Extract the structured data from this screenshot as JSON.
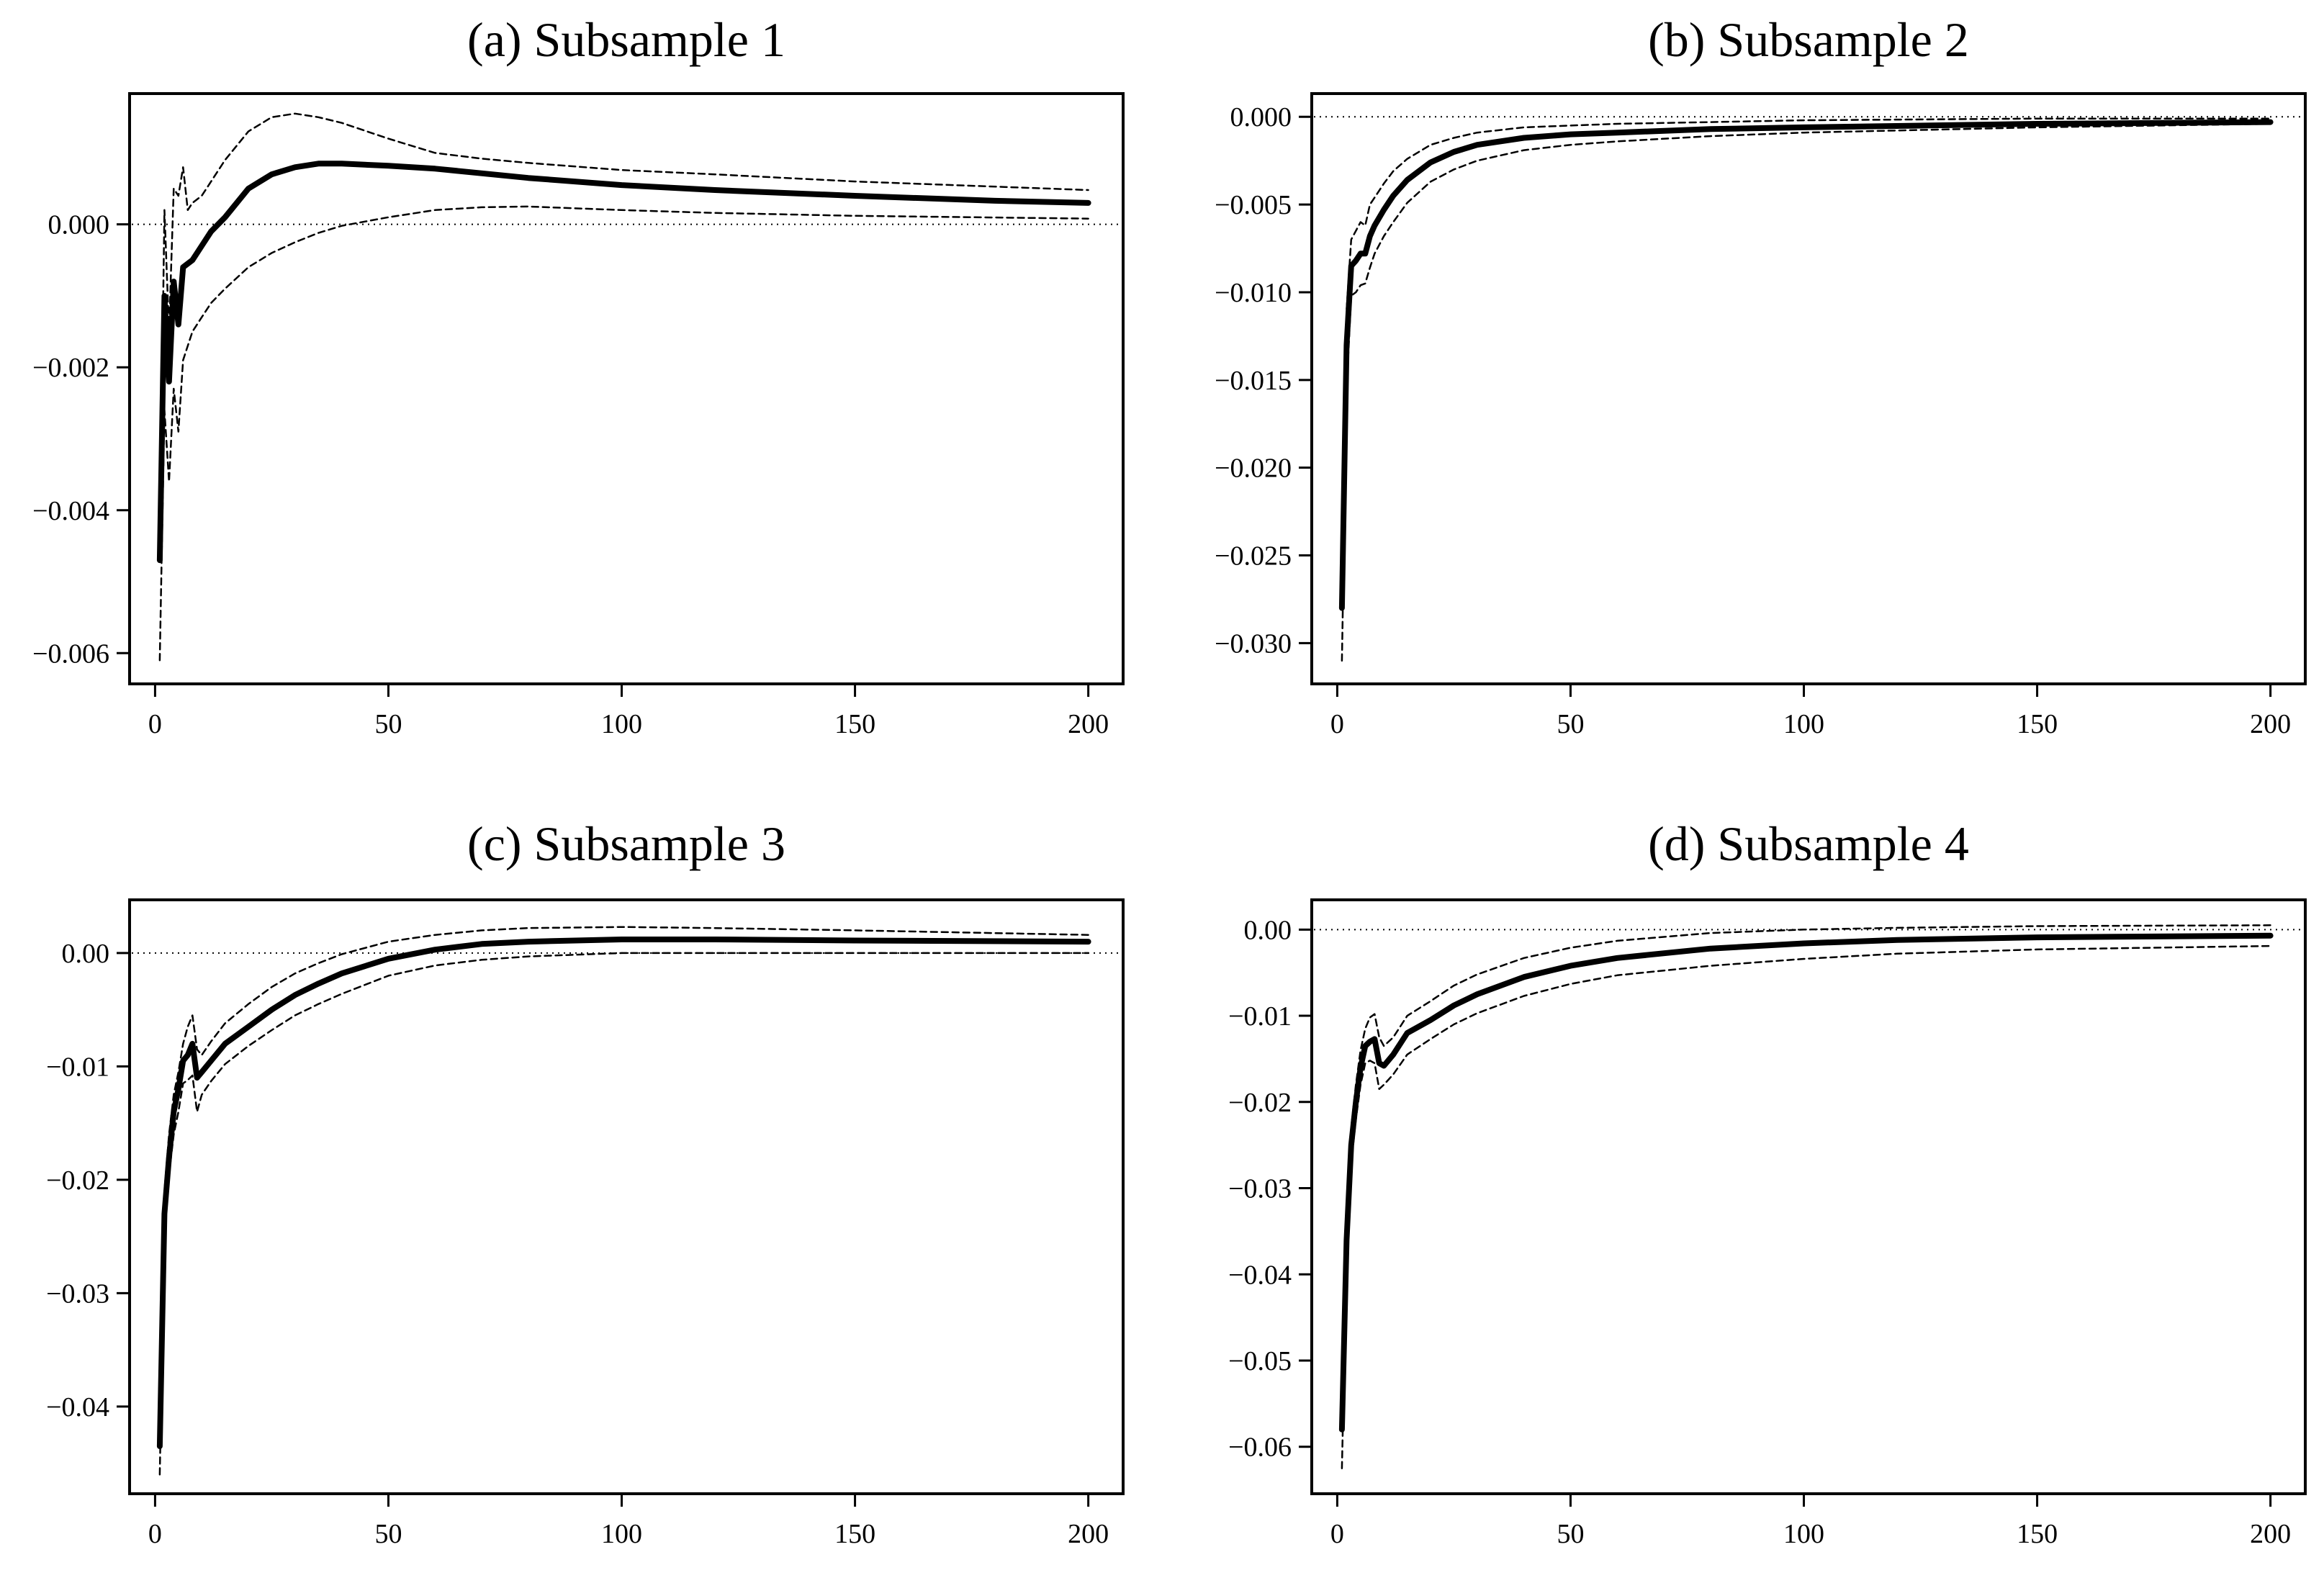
{
  "figure": {
    "panels": [
      "(a) Subsample 1",
      "(b) Subsample 2",
      "(c) Subsample 3",
      "(d) Subsample 4"
    ]
  },
  "chart_data": [
    {
      "type": "line",
      "title": "(a) Subsample 1",
      "xlim": [
        -5,
        207
      ],
      "ylim": [
        -0.0064,
        0.0018
      ],
      "xticks": [
        0,
        50,
        100,
        150,
        200
      ],
      "xtick_labels": [
        "0",
        "50",
        "100",
        "150",
        "200"
      ],
      "yticks": [
        -0.006,
        -0.004,
        -0.002,
        0.0
      ],
      "ytick_labels": [
        "−0.006",
        "−0.004",
        "−0.002",
        "0.000"
      ],
      "reference_line": 0,
      "series": [
        {
          "role": "estimate",
          "style": "solid-thick",
          "x": [
            1,
            2,
            3,
            4,
            5,
            6,
            8,
            10,
            12,
            15,
            20,
            25,
            30,
            35,
            40,
            50,
            60,
            80,
            100,
            120,
            150,
            180,
            200
          ],
          "y": [
            -0.0047,
            -0.001,
            -0.0022,
            -0.0008,
            -0.0014,
            -0.0006,
            -0.0005,
            -0.0003,
            -0.0001,
            0.0001,
            0.0005,
            0.0007,
            0.0008,
            0.00085,
            0.00085,
            0.00082,
            0.00078,
            0.00065,
            0.00055,
            0.00048,
            0.0004,
            0.00033,
            0.0003
          ]
        },
        {
          "role": "upper",
          "style": "dashed",
          "x": [
            1,
            2,
            3,
            4,
            5,
            6,
            7,
            8,
            10,
            12,
            15,
            20,
            25,
            30,
            35,
            40,
            50,
            60,
            70,
            80,
            100,
            120,
            150,
            200
          ],
          "y": [
            -0.0045,
            0.0002,
            -0.0015,
            0.0005,
            0.0004,
            0.0008,
            0.0002,
            0.0003,
            0.0004,
            0.0006,
            0.0009,
            0.0013,
            0.0015,
            0.00155,
            0.0015,
            0.00142,
            0.0012,
            0.001,
            0.00092,
            0.00086,
            0.00076,
            0.0007,
            0.0006,
            0.00048
          ]
        },
        {
          "role": "lower",
          "style": "dashed",
          "x": [
            1,
            2,
            3,
            4,
            5,
            6,
            8,
            10,
            12,
            15,
            20,
            25,
            30,
            35,
            40,
            50,
            60,
            70,
            80,
            100,
            120,
            150,
            200
          ],
          "y": [
            -0.0061,
            -0.0026,
            -0.0036,
            -0.0023,
            -0.0029,
            -0.0019,
            -0.0015,
            -0.0013,
            -0.0011,
            -0.0009,
            -0.0006,
            -0.0004,
            -0.00025,
            -0.00012,
            -2e-05,
            0.0001,
            0.0002,
            0.00024,
            0.00025,
            0.0002,
            0.00016,
            0.00012,
            8e-05
          ]
        }
      ]
    },
    {
      "type": "line",
      "title": "(b) Subsample 2",
      "xlim": [
        -5,
        207
      ],
      "ylim": [
        -0.0322,
        0.0012
      ],
      "xticks": [
        0,
        50,
        100,
        150,
        200
      ],
      "xtick_labels": [
        "0",
        "50",
        "100",
        "150",
        "200"
      ],
      "yticks": [
        -0.03,
        -0.025,
        -0.02,
        -0.015,
        -0.01,
        -0.005,
        0.0
      ],
      "ytick_labels": [
        "−0.030",
        "−0.025",
        "−0.020",
        "−0.015",
        "−0.010",
        "−0.005",
        "0.000"
      ],
      "reference_line": 0,
      "series": [
        {
          "role": "estimate",
          "style": "solid-thick",
          "x": [
            1,
            2,
            3,
            4,
            5,
            6,
            7,
            8,
            10,
            12,
            15,
            20,
            25,
            30,
            40,
            50,
            60,
            80,
            100,
            150,
            200
          ],
          "y": [
            -0.028,
            -0.013,
            -0.0085,
            -0.0082,
            -0.0078,
            -0.0078,
            -0.0068,
            -0.0062,
            -0.0053,
            -0.0045,
            -0.0036,
            -0.0026,
            -0.002,
            -0.0016,
            -0.0012,
            -0.001,
            -0.0009,
            -0.0007,
            -0.0006,
            -0.0004,
            -0.0003
          ]
        },
        {
          "role": "upper",
          "style": "dashed",
          "x": [
            1,
            2,
            3,
            4,
            5,
            6,
            7,
            8,
            10,
            12,
            15,
            20,
            25,
            30,
            40,
            50,
            60,
            80,
            100,
            150,
            200
          ],
          "y": [
            -0.0245,
            -0.011,
            -0.007,
            -0.0065,
            -0.006,
            -0.0062,
            -0.005,
            -0.0046,
            -0.0038,
            -0.0031,
            -0.0024,
            -0.0016,
            -0.0012,
            -0.0009,
            -0.0006,
            -0.0005,
            -0.0004,
            -0.0003,
            -0.0002,
            -0.0001,
            -0.0001
          ]
        },
        {
          "role": "lower",
          "style": "dashed",
          "x": [
            1,
            2,
            3,
            4,
            5,
            6,
            7,
            8,
            10,
            12,
            15,
            20,
            25,
            30,
            40,
            50,
            60,
            80,
            100,
            150,
            200
          ],
          "y": [
            -0.031,
            -0.0155,
            -0.0102,
            -0.01,
            -0.0096,
            -0.0095,
            -0.0086,
            -0.0078,
            -0.0068,
            -0.006,
            -0.0049,
            -0.0037,
            -0.003,
            -0.0025,
            -0.0019,
            -0.0016,
            -0.0014,
            -0.0011,
            -0.0009,
            -0.0006,
            -0.0004
          ]
        }
      ]
    },
    {
      "type": "line",
      "title": "(c) Subsample 3",
      "xlim": [
        -5,
        207
      ],
      "ylim": [
        -0.0475,
        0.0045
      ],
      "xticks": [
        0,
        50,
        100,
        150,
        200
      ],
      "xtick_labels": [
        "0",
        "50",
        "100",
        "150",
        "200"
      ],
      "yticks": [
        -0.04,
        -0.03,
        -0.02,
        -0.01,
        0.0
      ],
      "ytick_labels": [
        "−0.04",
        "−0.03",
        "−0.02",
        "−0.01",
        "0.00"
      ],
      "reference_line": 0,
      "series": [
        {
          "role": "estimate",
          "style": "solid-thick",
          "x": [
            1,
            2,
            3,
            4,
            5,
            6,
            7,
            8,
            9,
            10,
            12,
            15,
            20,
            25,
            30,
            35,
            40,
            50,
            60,
            70,
            80,
            100,
            120,
            150,
            200
          ],
          "y": [
            -0.0435,
            -0.023,
            -0.018,
            -0.014,
            -0.012,
            -0.0095,
            -0.009,
            -0.008,
            -0.011,
            -0.0105,
            -0.0095,
            -0.008,
            -0.0065,
            -0.005,
            -0.0037,
            -0.0027,
            -0.0018,
            -0.0005,
            0.0003,
            0.0008,
            0.001,
            0.0012,
            0.0012,
            0.0011,
            0.001
          ]
        },
        {
          "role": "upper",
          "style": "dashed",
          "x": [
            1,
            2,
            3,
            4,
            5,
            6,
            7,
            8,
            9,
            10,
            12,
            15,
            20,
            25,
            30,
            35,
            40,
            50,
            60,
            70,
            80,
            100,
            120,
            150,
            200
          ],
          "y": [
            -0.0415,
            -0.021,
            -0.016,
            -0.0125,
            -0.0105,
            -0.008,
            -0.0065,
            -0.0055,
            -0.0085,
            -0.009,
            -0.0078,
            -0.0062,
            -0.0045,
            -0.003,
            -0.0018,
            -0.0009,
            -0.0001,
            0.001,
            0.0016,
            0.002,
            0.0022,
            0.0023,
            0.0022,
            0.002,
            0.0016
          ]
        },
        {
          "role": "lower",
          "style": "dashed",
          "x": [
            1,
            2,
            3,
            4,
            5,
            6,
            7,
            8,
            9,
            10,
            12,
            15,
            20,
            25,
            30,
            35,
            40,
            50,
            60,
            70,
            80,
            100,
            120,
            150,
            200
          ],
          "y": [
            -0.046,
            -0.0245,
            -0.0195,
            -0.016,
            -0.014,
            -0.0115,
            -0.0112,
            -0.0108,
            -0.014,
            -0.0125,
            -0.0113,
            -0.0098,
            -0.0082,
            -0.0068,
            -0.0055,
            -0.0045,
            -0.0036,
            -0.002,
            -0.0011,
            -0.0006,
            -0.0003,
            0.0,
            0.0,
            0.0,
            0.0
          ]
        }
      ]
    },
    {
      "type": "line",
      "title": "(d) Subsample 4",
      "xlim": [
        -5,
        207
      ],
      "ylim": [
        -0.0652,
        0.0032
      ],
      "xticks": [
        0,
        50,
        100,
        150,
        200
      ],
      "xtick_labels": [
        "0",
        "50",
        "100",
        "150",
        "200"
      ],
      "yticks": [
        -0.06,
        -0.05,
        -0.04,
        -0.03,
        -0.02,
        -0.01,
        0.0
      ],
      "ytick_labels": [
        "−0.06",
        "−0.05",
        "−0.04",
        "−0.03",
        "−0.02",
        "−0.01",
        "0.00"
      ],
      "reference_line": 0,
      "series": [
        {
          "role": "estimate",
          "style": "solid-thick",
          "x": [
            1,
            2,
            3,
            4,
            5,
            6,
            7,
            8,
            9,
            10,
            12,
            15,
            20,
            25,
            30,
            40,
            50,
            60,
            80,
            100,
            120,
            150,
            200
          ],
          "y": [
            -0.058,
            -0.036,
            -0.025,
            -0.02,
            -0.016,
            -0.0135,
            -0.013,
            -0.0127,
            -0.0155,
            -0.0158,
            -0.0145,
            -0.012,
            -0.0105,
            -0.0088,
            -0.0075,
            -0.0055,
            -0.0042,
            -0.0033,
            -0.0022,
            -0.0016,
            -0.0012,
            -0.0009,
            -0.0007
          ]
        },
        {
          "role": "upper",
          "style": "dashed",
          "x": [
            1,
            2,
            3,
            4,
            5,
            6,
            7,
            8,
            9,
            10,
            12,
            15,
            20,
            25,
            30,
            40,
            50,
            60,
            80,
            100,
            120,
            150,
            200
          ],
          "y": [
            -0.055,
            -0.034,
            -0.023,
            -0.018,
            -0.014,
            -0.0115,
            -0.0102,
            -0.0098,
            -0.0125,
            -0.0135,
            -0.0125,
            -0.01,
            -0.0083,
            -0.0065,
            -0.0052,
            -0.0033,
            -0.0021,
            -0.0013,
            -0.0004,
            0.0,
            0.0002,
            0.0004,
            0.0005
          ]
        },
        {
          "role": "lower",
          "style": "dashed",
          "x": [
            1,
            2,
            3,
            4,
            5,
            6,
            7,
            8,
            9,
            10,
            12,
            15,
            20,
            25,
            30,
            40,
            50,
            60,
            80,
            100,
            120,
            150,
            200
          ],
          "y": [
            -0.0625,
            -0.038,
            -0.027,
            -0.022,
            -0.018,
            -0.0155,
            -0.0152,
            -0.0155,
            -0.0185,
            -0.018,
            -0.0168,
            -0.0145,
            -0.0127,
            -0.011,
            -0.0097,
            -0.0077,
            -0.0063,
            -0.0053,
            -0.0042,
            -0.0034,
            -0.0028,
            -0.0023,
            -0.0019
          ]
        }
      ]
    }
  ]
}
